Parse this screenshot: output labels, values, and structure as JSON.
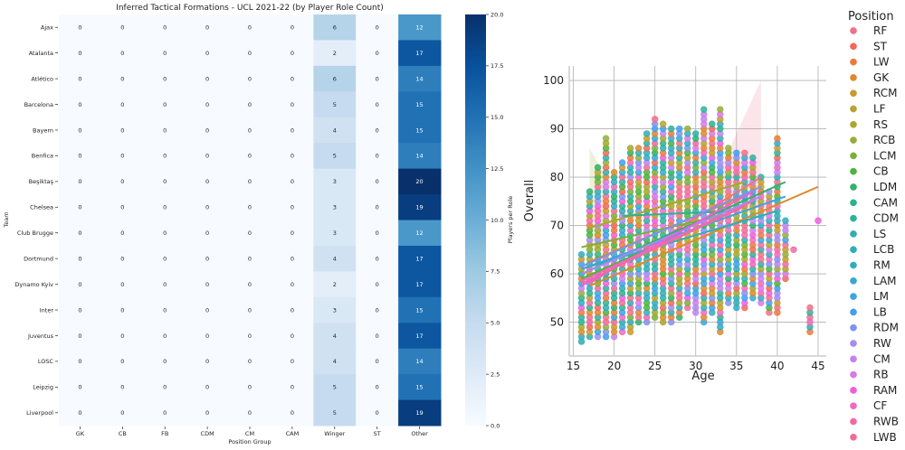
{
  "chart_data": [
    {
      "type": "heatmap",
      "title": "Inferred Tactical Formations - UCL 2021-22 (by Player Role Count)",
      "xlabel": "Position Group",
      "ylabel": "Team",
      "columns": [
        "GK",
        "CB",
        "FB",
        "CDM",
        "CM",
        "CAM",
        "Winger",
        "ST",
        "Other"
      ],
      "rows": [
        "Ajax",
        "Atalanta",
        "Atlético",
        "Barcelona",
        "Bayern",
        "Benfica",
        "Beşiktaş",
        "Chelsea",
        "Club Brugge",
        "Dortmund",
        "Dynamo Kyiv",
        "Inter",
        "Juventus",
        "LOSC",
        "Leipzig",
        "Liverpool"
      ],
      "values": [
        [
          0,
          0,
          0,
          0,
          0,
          0,
          6,
          0,
          12
        ],
        [
          0,
          0,
          0,
          0,
          0,
          0,
          2,
          0,
          17
        ],
        [
          0,
          0,
          0,
          0,
          0,
          0,
          6,
          0,
          14
        ],
        [
          0,
          0,
          0,
          0,
          0,
          0,
          5,
          0,
          15
        ],
        [
          0,
          0,
          0,
          0,
          0,
          0,
          4,
          0,
          15
        ],
        [
          0,
          0,
          0,
          0,
          0,
          0,
          5,
          0,
          14
        ],
        [
          0,
          0,
          0,
          0,
          0,
          0,
          3,
          0,
          20
        ],
        [
          0,
          0,
          0,
          0,
          0,
          0,
          3,
          0,
          19
        ],
        [
          0,
          0,
          0,
          0,
          0,
          0,
          3,
          0,
          12
        ],
        [
          0,
          0,
          0,
          0,
          0,
          0,
          4,
          0,
          17
        ],
        [
          0,
          0,
          0,
          0,
          0,
          0,
          2,
          0,
          17
        ],
        [
          0,
          0,
          0,
          0,
          0,
          0,
          3,
          0,
          15
        ],
        [
          0,
          0,
          0,
          0,
          0,
          0,
          4,
          0,
          17
        ],
        [
          0,
          0,
          0,
          0,
          0,
          0,
          4,
          0,
          14
        ],
        [
          0,
          0,
          0,
          0,
          0,
          0,
          5,
          0,
          15
        ],
        [
          0,
          0,
          0,
          0,
          0,
          0,
          5,
          0,
          19
        ]
      ],
      "colormap": "Blues",
      "colorbar": {
        "label": "Players per Role",
        "range": [
          0,
          20
        ],
        "ticks": [
          "0.0",
          "2.5",
          "5.0",
          "7.5",
          "10.0",
          "12.5",
          "15.0",
          "17.5",
          "20.0"
        ]
      }
    },
    {
      "type": "scatter",
      "title": "",
      "xlabel": "Age",
      "ylabel": "Overall",
      "xlim": [
        14.5,
        46
      ],
      "ylim": [
        43,
        103
      ],
      "xticks": [
        "15",
        "20",
        "25",
        "30",
        "35",
        "40",
        "45"
      ],
      "yticks": [
        "50",
        "60",
        "70",
        "80",
        "90",
        "100"
      ],
      "grid": true,
      "legend": {
        "title": "Position",
        "placement": "right-outside",
        "entries": [
          {
            "label": "RF",
            "color": "#f0708a"
          },
          {
            "label": "ST",
            "color": "#f0695a"
          },
          {
            "label": "LW",
            "color": "#ec7a3a"
          },
          {
            "label": "GK",
            "color": "#dc8a2e"
          },
          {
            "label": "RCM",
            "color": "#c99a2e"
          },
          {
            "label": "LF",
            "color": "#b9a22e"
          },
          {
            "label": "RS",
            "color": "#a7a72e"
          },
          {
            "label": "RCB",
            "color": "#95ad3c"
          },
          {
            "label": "LCM",
            "color": "#77b13c"
          },
          {
            "label": "CB",
            "color": "#4db33e"
          },
          {
            "label": "LDM",
            "color": "#2fb26a"
          },
          {
            "label": "CAM",
            "color": "#2fb18e"
          },
          {
            "label": "CDM",
            "color": "#30b09e"
          },
          {
            "label": "LS",
            "color": "#31aeac"
          },
          {
            "label": "LCB",
            "color": "#32adb5"
          },
          {
            "label": "RM",
            "color": "#33abbf"
          },
          {
            "label": "LAM",
            "color": "#36a9cc"
          },
          {
            "label": "LM",
            "color": "#3aa6dc"
          },
          {
            "label": "LB",
            "color": "#3f9ff0"
          },
          {
            "label": "RDM",
            "color": "#7d94f0"
          },
          {
            "label": "RW",
            "color": "#a58cf0"
          },
          {
            "label": "CM",
            "color": "#c183ee"
          },
          {
            "label": "RB",
            "color": "#d977ec"
          },
          {
            "label": "RAM",
            "color": "#ee5ee0"
          },
          {
            "label": "CF",
            "color": "#f268bd"
          },
          {
            "label": "RWB",
            "color": "#f16aa4"
          },
          {
            "label": "LWB",
            "color": "#f06c90"
          }
        ]
      },
      "age_overall_ranges": [
        {
          "age": 16,
          "min": 46,
          "max": 64
        },
        {
          "age": 17,
          "min": 47,
          "max": 77
        },
        {
          "age": 18,
          "min": 47,
          "max": 82
        },
        {
          "age": 19,
          "min": 47,
          "max": 88
        },
        {
          "age": 20,
          "min": 47,
          "max": 81
        },
        {
          "age": 21,
          "min": 48,
          "max": 83
        },
        {
          "age": 22,
          "min": 48,
          "max": 86
        },
        {
          "age": 23,
          "min": 50,
          "max": 86
        },
        {
          "age": 24,
          "min": 50,
          "max": 89
        },
        {
          "age": 25,
          "min": 51,
          "max": 92
        },
        {
          "age": 26,
          "min": 50,
          "max": 91
        },
        {
          "age": 27,
          "min": 50,
          "max": 90
        },
        {
          "age": 28,
          "min": 51,
          "max": 90
        },
        {
          "age": 29,
          "min": 53,
          "max": 90
        },
        {
          "age": 30,
          "min": 52,
          "max": 89
        },
        {
          "age": 31,
          "min": 50,
          "max": 94
        },
        {
          "age": 32,
          "min": 52,
          "max": 91
        },
        {
          "age": 33,
          "min": 48,
          "max": 94
        },
        {
          "age": 34,
          "min": 54,
          "max": 86
        },
        {
          "age": 35,
          "min": 53,
          "max": 85
        },
        {
          "age": 36,
          "min": 53,
          "max": 85
        },
        {
          "age": 37,
          "min": 55,
          "max": 84
        },
        {
          "age": 38,
          "min": 54,
          "max": 80
        },
        {
          "age": 39,
          "min": 52,
          "max": 77
        },
        {
          "age": 40,
          "min": 52,
          "max": 88
        },
        {
          "age": 41,
          "min": 59,
          "max": 71
        },
        {
          "age": 42,
          "min": 65,
          "max": 65
        },
        {
          "age": 44,
          "min": 48,
          "max": 53
        },
        {
          "age": 45,
          "min": 71,
          "max": 71
        }
      ],
      "regression_lines": [
        {
          "position": "RF",
          "x": [
            17,
            38
          ],
          "y": [
            58,
            80
          ]
        },
        {
          "position": "LW",
          "x": [
            17,
            37
          ],
          "y": [
            62.5,
            77
          ]
        },
        {
          "position": "GK",
          "x": [
            17,
            45
          ],
          "y": [
            57.5,
            78
          ]
        },
        {
          "position": "RS",
          "x": [
            17,
            36
          ],
          "y": [
            69.5,
            79
          ]
        },
        {
          "position": "LCM",
          "x": [
            16,
            33
          ],
          "y": [
            65.5,
            72
          ]
        },
        {
          "position": "CB",
          "x": [
            16,
            36
          ],
          "y": [
            59,
            74
          ]
        },
        {
          "position": "LDM",
          "x": [
            16,
            41
          ],
          "y": [
            60,
            79
          ]
        },
        {
          "position": "CAM",
          "x": [
            21,
            35
          ],
          "y": [
            72,
            73
          ]
        },
        {
          "position": "LCB",
          "x": [
            16,
            40
          ],
          "y": [
            61,
            73
          ]
        },
        {
          "position": "LM",
          "x": [
            16,
            41
          ],
          "y": [
            61,
            76
          ]
        },
        {
          "position": "RDM",
          "x": [
            16,
            38
          ],
          "y": [
            61.5,
            78
          ]
        },
        {
          "position": "RW",
          "x": [
            16,
            38
          ],
          "y": [
            60,
            76
          ]
        },
        {
          "position": "RAM",
          "x": [
            16,
            37
          ],
          "y": [
            57.5,
            77
          ]
        },
        {
          "position": "CF",
          "x": [
            16,
            37
          ],
          "y": [
            58.5,
            75
          ]
        },
        {
          "position": "RWB",
          "x": [
            16,
            36
          ],
          "y": [
            58,
            74
          ]
        }
      ]
    }
  ]
}
